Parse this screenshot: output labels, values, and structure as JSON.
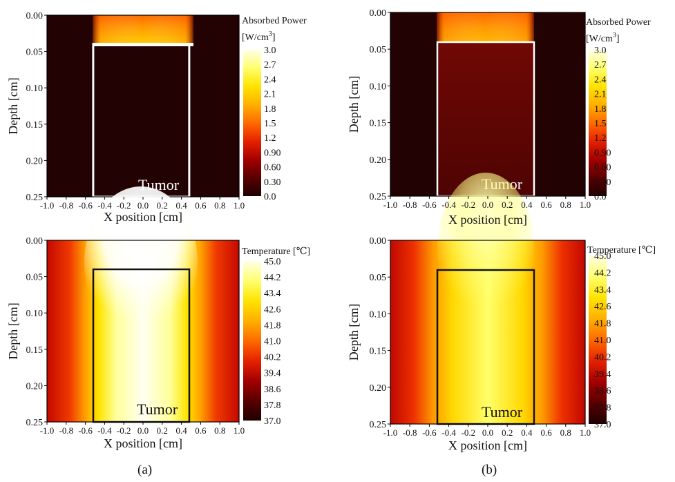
{
  "captions": [
    "(a)",
    "(b)"
  ],
  "chart_data": [
    {
      "id": "a-power",
      "type": "heatmap",
      "xlabel": "X position [cm]",
      "ylabel": "Depth [cm]",
      "xlim": [
        -1.0,
        1.0
      ],
      "ylim": [
        0.0,
        0.25
      ],
      "xticks": [
        "-1.0",
        "-0.8",
        "-0.6",
        "-0.4",
        "-0.2",
        "0.0",
        "0.2",
        "0.4",
        "0.6",
        "0.8",
        "1.0"
      ],
      "yticks": [
        "0.00",
        "0.05",
        "0.10",
        "0.15",
        "0.20",
        "0.25"
      ],
      "colorbar": {
        "title1": "Absorbed Power",
        "title2": "[W/cm",
        "title_sup": "3",
        "title3": "]",
        "ticks": [
          "3.0",
          "2.7",
          "2.4",
          "2.1",
          "1.8",
          "1.5",
          "1.2",
          "0.90",
          "0.60",
          "0.30",
          "0.0"
        ],
        "range": [
          0.0,
          3.0
        ],
        "colors": [
          "#1e0000",
          "#5a0000",
          "#a30000",
          "#e52200",
          "#ff6a00",
          "#ffb000",
          "#ffe300",
          "#ffff6e",
          "#ffffe6"
        ]
      },
      "tumor": {
        "label": "Tumor",
        "x_range": [
          -0.5,
          0.5
        ],
        "depth_range": [
          0.04,
          0.25
        ],
        "outline_color": "#ffffff"
      },
      "description_values": {
        "surface_layer_power_max": 3.0,
        "tumor_power": 0.05,
        "background_power": 0.0
      }
    },
    {
      "id": "b-power",
      "type": "heatmap",
      "xlabel": "X position [cm]",
      "ylabel": "Depth [cm]",
      "xlim": [
        -1.0,
        1.0
      ],
      "ylim": [
        0.0,
        0.25
      ],
      "xticks": [
        "-1.0",
        "-0.8",
        "-0.6",
        "-0.4",
        "-0.2",
        "0.0",
        "0.2",
        "0.4",
        "0.6",
        "0.8",
        "1.0"
      ],
      "yticks": [
        "0.00",
        "0.05",
        "0.10",
        "0.15",
        "0.20",
        "0.25"
      ],
      "colorbar": {
        "title1": "Absorbed Power",
        "title2": "[W/cm",
        "title_sup": "3",
        "title3": "]",
        "ticks": [
          "3.0",
          "2.7",
          "2.4",
          "2.1",
          "1.8",
          "1.5",
          "1.2",
          "0.90",
          "0.60",
          "0.30",
          "0.0"
        ],
        "range": [
          0.0,
          3.0
        ],
        "colors": [
          "#1e0000",
          "#5a0000",
          "#a30000",
          "#e52200",
          "#ff6a00",
          "#ffb000",
          "#ffe300",
          "#ffff6e",
          "#ffffe6"
        ]
      },
      "tumor": {
        "label": "Tumor",
        "x_range": [
          -0.5,
          0.5
        ],
        "depth_range": [
          0.04,
          0.25
        ],
        "outline_color": "#ffffff"
      },
      "description_values": {
        "surface_layer_power_max": 3.0,
        "tumor_power": 0.45,
        "background_power": 0.0
      }
    },
    {
      "id": "a-temp",
      "type": "heatmap",
      "xlabel": "X position [cm]",
      "ylabel": "Depth [cm]",
      "xlim": [
        -1.0,
        1.0
      ],
      "ylim": [
        0.0,
        0.25
      ],
      "xticks": [
        "-1.0",
        "-0.8",
        "-0.6",
        "-0.4",
        "-0.2",
        "0.0",
        "0.2",
        "0.4",
        "0.6",
        "0.8",
        "1.0"
      ],
      "yticks": [
        "0.00",
        "0.05",
        "0.10",
        "0.15",
        "0.20",
        "0.25"
      ],
      "colorbar": {
        "title1": "Temperature [℃]",
        "ticks": [
          "45.0",
          "44.2",
          "43.4",
          "42.6",
          "41.8",
          "41.0",
          "40.2",
          "39.4",
          "38.6",
          "37.8",
          "37.0"
        ],
        "range": [
          37.0,
          45.0
        ],
        "colors": [
          "#1e0000",
          "#5a0000",
          "#a30000",
          "#e52200",
          "#ff6a00",
          "#ffb000",
          "#ffe300",
          "#ffff6e",
          "#ffffe6"
        ]
      },
      "tumor": {
        "label": "Tumor",
        "x_range": [
          -0.5,
          0.5
        ],
        "depth_range": [
          0.04,
          0.25
        ],
        "outline_color": "#111111"
      },
      "description_values": {
        "max_temperature": 45.0,
        "tumor_center_temperature": 44.6,
        "edge_temperature": 39.8
      }
    },
    {
      "id": "b-temp",
      "type": "heatmap",
      "xlabel": "X position [cm]",
      "ylabel": "Depth [cm]",
      "xlim": [
        -1.0,
        1.0
      ],
      "ylim": [
        0.0,
        0.25
      ],
      "xticks": [
        "-1.0",
        "-0.8",
        "-0.6",
        "-0.4",
        "-0.2",
        "0.0",
        "0.2",
        "0.4",
        "0.6",
        "0.8",
        "1.0"
      ],
      "yticks": [
        "0.00",
        "0.05",
        "0.10",
        "0.15",
        "0.20",
        "0.25"
      ],
      "colorbar": {
        "title1": "Temperature [℃]",
        "ticks": [
          "45.0",
          "44.2",
          "43.4",
          "42.6",
          "41.8",
          "41.0",
          "40.2",
          "39.4",
          "38.6",
          "37.8",
          "37.0"
        ],
        "range": [
          37.0,
          45.0
        ],
        "colors": [
          "#1e0000",
          "#5a0000",
          "#a30000",
          "#e52200",
          "#ff6a00",
          "#ffb000",
          "#ffe300",
          "#ffff6e",
          "#ffffe6"
        ]
      },
      "tumor": {
        "label": "Tumor",
        "x_range": [
          -0.5,
          0.5
        ],
        "depth_range": [
          0.04,
          0.25
        ],
        "outline_color": "#111111"
      },
      "description_values": {
        "max_temperature": 44.3,
        "tumor_center_temperature": 43.2,
        "edge_temperature": 39.6
      }
    }
  ]
}
